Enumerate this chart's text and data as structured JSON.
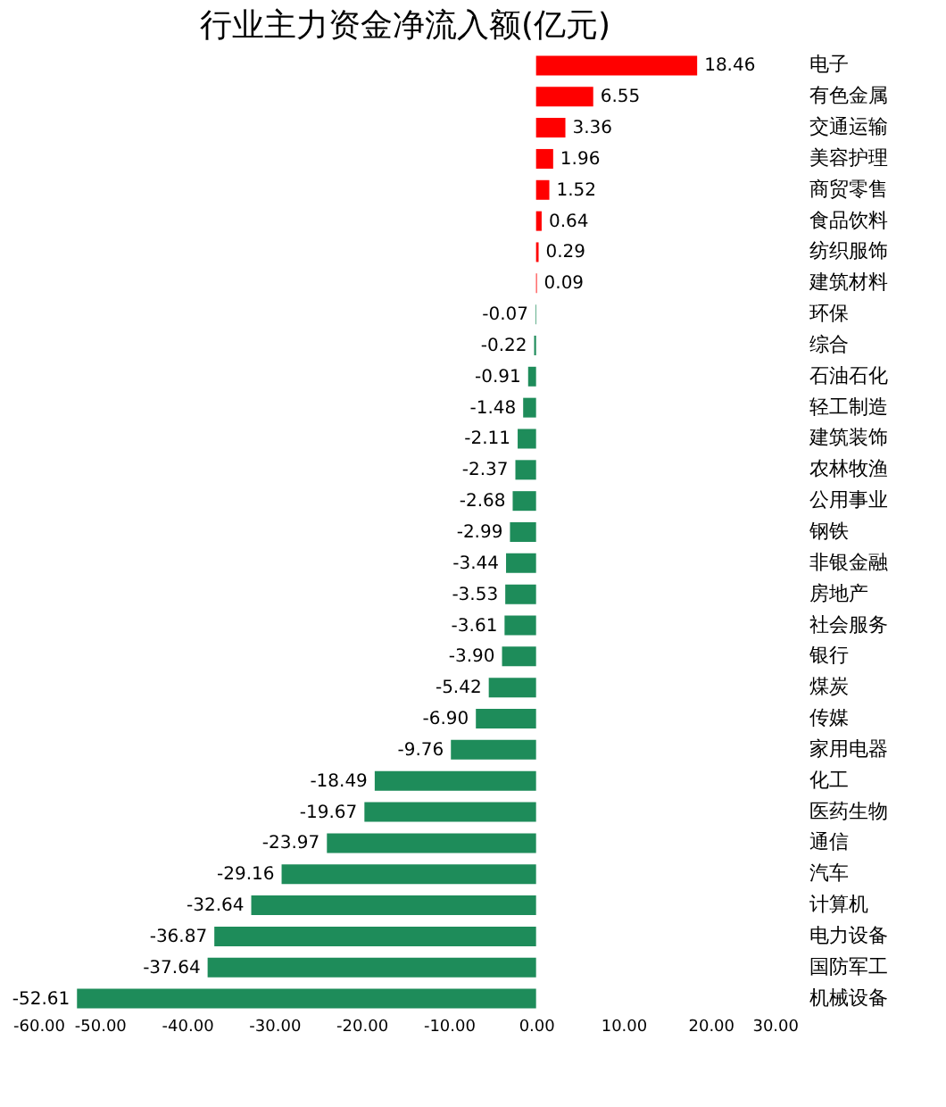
{
  "chart_data": {
    "type": "bar",
    "orientation": "horizontal",
    "title": "行业主力资金净流入额(亿元)",
    "categories": [
      "电子",
      "有色金属",
      "交通运输",
      "美容护理",
      "商贸零售",
      "食品饮料",
      "纺织服饰",
      "建筑材料",
      "环保",
      "综合",
      "石油石化",
      "轻工制造",
      "建筑装饰",
      "农林牧渔",
      "公用事业",
      "钢铁",
      "非银金融",
      "房地产",
      "社会服务",
      "银行",
      "煤炭",
      "传媒",
      "家用电器",
      "化工",
      "医药生物",
      "通信",
      "汽车",
      "计算机",
      "电力设备",
      "国防军工",
      "机械设备"
    ],
    "values": [
      18.46,
      6.55,
      3.36,
      1.96,
      1.52,
      0.64,
      0.29,
      0.09,
      -0.07,
      -0.22,
      -0.91,
      -1.48,
      -2.11,
      -2.37,
      -2.68,
      -2.99,
      -3.44,
      -3.53,
      -3.61,
      -3.9,
      -5.42,
      -6.9,
      -9.76,
      -18.49,
      -19.67,
      -23.97,
      -29.16,
      -32.64,
      -36.87,
      -37.64,
      -52.61
    ],
    "colors": [
      "#ff0000",
      "#ff0000",
      "#ff0000",
      "#ff0000",
      "#ff0000",
      "#ff0000",
      "#ff0000",
      "#ff0000",
      "#1e8c5a",
      "#1e8c5a",
      "#1e8c5a",
      "#1e8c5a",
      "#1e8c5a",
      "#1e8c5a",
      "#1e8c5a",
      "#1e8c5a",
      "#1e8c5a",
      "#1e8c5a",
      "#1e8c5a",
      "#1e8c5a",
      "#1e8c5a",
      "#1e8c5a",
      "#1e8c5a",
      "#1e8c5a",
      "#1e8c5a",
      "#1e8c5a",
      "#1e8c5a",
      "#1e8c5a",
      "#1e8c5a",
      "#1e8c5a",
      "#1e8c5a"
    ],
    "xlim": [
      -60,
      30
    ],
    "xticks": [
      {
        "value": -60,
        "label": "-60.00"
      },
      {
        "value": -50,
        "label": "-50.00"
      },
      {
        "value": -40,
        "label": "-40.00"
      },
      {
        "value": -30,
        "label": "-30.00"
      },
      {
        "value": -20,
        "label": "-20.00"
      },
      {
        "value": -10,
        "label": "-10.00"
      },
      {
        "value": 0,
        "label": "0.00"
      },
      {
        "value": 10,
        "label": "10.00"
      },
      {
        "value": 20,
        "label": "20.00"
      },
      {
        "value": 30,
        "label": "30.00"
      }
    ],
    "value_labels": [
      "18.46",
      "6.55",
      "3.36",
      "1.96",
      "1.52",
      "0.64",
      "0.29",
      "0.09",
      "-0.07",
      "-0.22",
      "-0.91",
      "-1.48",
      "-2.11",
      "-2.37",
      "-2.68",
      "-2.99",
      "-3.44",
      "-3.53",
      "-3.61",
      "-3.90",
      "-5.42",
      "-6.90",
      "-9.76",
      "-18.49",
      "-19.67",
      "-23.97",
      "-29.16",
      "-32.64",
      "-36.87",
      "-37.64",
      "-52.61"
    ],
    "grid": false
  }
}
